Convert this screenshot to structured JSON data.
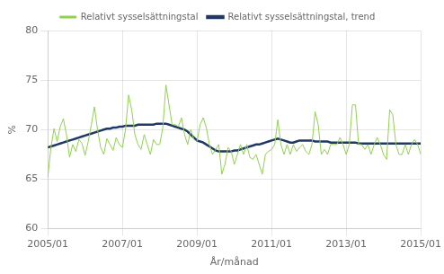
{
  "chart_data": {
    "type": "line",
    "xlabel": "År/månad",
    "ylabel": "%",
    "categories": [
      "2005/01",
      null,
      null,
      null,
      null,
      null,
      null,
      null,
      null,
      null,
      null,
      null,
      null,
      null,
      null,
      null,
      null,
      null,
      null,
      null,
      null,
      null,
      null,
      null,
      "2007/01",
      null,
      null,
      null,
      null,
      null,
      null,
      null,
      null,
      null,
      null,
      null,
      null,
      null,
      null,
      null,
      null,
      null,
      null,
      null,
      null,
      null,
      null,
      null,
      "2009/01",
      null,
      null,
      null,
      null,
      null,
      null,
      null,
      null,
      null,
      null,
      null,
      null,
      null,
      null,
      null,
      null,
      null,
      null,
      null,
      null,
      null,
      null,
      null,
      "2011/01",
      null,
      null,
      null,
      null,
      null,
      null,
      null,
      null,
      null,
      null,
      null,
      null,
      null,
      null,
      null,
      null,
      null,
      null,
      null,
      null,
      null,
      null,
      null,
      "2013/01",
      null,
      null,
      null,
      null,
      null,
      null,
      null,
      null,
      null,
      null,
      null,
      null,
      null,
      null,
      null,
      null,
      null,
      null,
      null,
      null,
      null,
      null,
      null,
      "2015/01"
    ],
    "series": [
      {
        "name": "Relativt sysselsättningstal",
        "color": "#92d050",
        "values": [
          65.2,
          68.2,
          70.1,
          68.8,
          70.3,
          71.1,
          69.5,
          67.2,
          68.5,
          67.8,
          69.0,
          68.6,
          67.4,
          68.8,
          70.5,
          72.3,
          70.0,
          68.2,
          67.5,
          69.1,
          68.5,
          67.9,
          69.2,
          68.5,
          68.2,
          70.0,
          73.5,
          72.0,
          69.5,
          68.5,
          68.0,
          69.5,
          68.5,
          67.5,
          69.0,
          68.5,
          68.5,
          70.2,
          74.5,
          72.5,
          70.5,
          70.5,
          70.3,
          71.2,
          69.5,
          68.5,
          70.0,
          69.0,
          68.8,
          70.5,
          71.2,
          70.2,
          68.5,
          67.5,
          68.0,
          68.5,
          65.5,
          66.5,
          68.2,
          67.8,
          66.5,
          67.5,
          68.5,
          67.5,
          68.5,
          67.2,
          67.0,
          67.5,
          66.5,
          65.5,
          67.5,
          67.8,
          68.0,
          68.5,
          71.0,
          68.5,
          67.5,
          68.5,
          67.5,
          68.5,
          67.8,
          68.2,
          68.5,
          67.8,
          67.5,
          68.5,
          71.8,
          70.5,
          67.5,
          68.0,
          67.5,
          68.5,
          68.5,
          68.5,
          69.2,
          68.5,
          67.5,
          68.5,
          72.5,
          72.5,
          68.5,
          68.5,
          68.0,
          68.5,
          67.5,
          68.5,
          69.2,
          68.5,
          67.5,
          67.0,
          72.0,
          71.5,
          68.5,
          67.5,
          67.5,
          68.5,
          67.5,
          68.5,
          69.0,
          68.5,
          67.5
        ]
      },
      {
        "name": "Relativt sysselsättningstal, trend",
        "color": "#1f3864",
        "values": [
          68.2,
          68.3,
          68.4,
          68.5,
          68.6,
          68.7,
          68.8,
          68.9,
          69.0,
          69.1,
          69.2,
          69.3,
          69.4,
          69.5,
          69.6,
          69.7,
          69.8,
          69.9,
          70.0,
          70.1,
          70.1,
          70.2,
          70.2,
          70.3,
          70.3,
          70.4,
          70.4,
          70.4,
          70.4,
          70.5,
          70.5,
          70.5,
          70.5,
          70.5,
          70.5,
          70.6,
          70.6,
          70.6,
          70.6,
          70.5,
          70.4,
          70.3,
          70.2,
          70.1,
          70.0,
          69.8,
          69.5,
          69.2,
          68.9,
          68.8,
          68.7,
          68.5,
          68.3,
          68.1,
          67.9,
          67.8,
          67.8,
          67.8,
          67.8,
          67.8,
          67.9,
          67.9,
          68.0,
          68.1,
          68.2,
          68.3,
          68.4,
          68.5,
          68.5,
          68.6,
          68.7,
          68.8,
          68.9,
          69.0,
          69.1,
          69.0,
          68.9,
          68.8,
          68.7,
          68.7,
          68.8,
          68.9,
          68.9,
          68.9,
          68.9,
          68.9,
          68.8,
          68.8,
          68.8,
          68.8,
          68.8,
          68.7,
          68.7,
          68.7,
          68.7,
          68.7,
          68.7,
          68.7,
          68.7,
          68.7,
          68.6,
          68.6,
          68.6,
          68.6,
          68.6,
          68.6,
          68.6,
          68.6,
          68.6,
          68.6,
          68.6,
          68.6,
          68.6,
          68.6,
          68.6,
          68.6,
          68.6,
          68.6,
          68.6,
          68.6,
          68.6
        ]
      }
    ],
    "ylim": [
      60,
      80
    ],
    "yticks": [
      60,
      65,
      70,
      75,
      80
    ],
    "grid": true,
    "legend": "top"
  }
}
